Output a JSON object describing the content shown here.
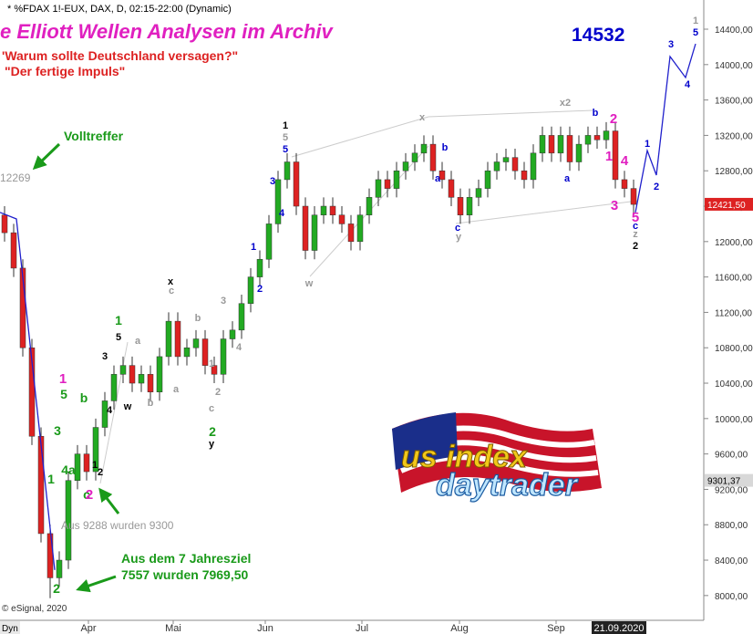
{
  "chart_data": {
    "type": "candlestick",
    "header": "* %FDAX 1!-EUX, DAX, D, 02:15-22:00 (Dynamic)",
    "title": "e Elliott Wellen Analysen im Archiv",
    "subtitle1": "'Warum sollte Deutschland versagen?\"",
    "subtitle2": "\"Der fertige Impuls\"",
    "target": "14532",
    "note_hit": "Volltreffer",
    "note_level": "12269",
    "note_9288": "Aus 9288 wurden 9300",
    "note_goal1": "Aus dem 7 Jahresziel",
    "note_goal2": "7557 wurden 7969,50",
    "copyright": "© eSignal, 2020",
    "corner": "Dyn",
    "logo": {
      "line1": "us index",
      "line2": "daytrader"
    },
    "up_color": "#22aa22",
    "down_color": "#dd2222",
    "xlim": [
      -0.5,
      76.7
    ],
    "xticks": [
      {
        "value": 9.2,
        "label": "Apr"
      },
      {
        "value": 18.5,
        "label": "Mai"
      },
      {
        "value": 28.6,
        "label": "Jun"
      },
      {
        "value": 39.2,
        "label": "Jul"
      },
      {
        "value": 49.9,
        "label": "Aug"
      },
      {
        "value": 60.5,
        "label": "Sep"
      }
    ],
    "date_box": {
      "value": 67.2,
      "label": "21.09.2020"
    },
    "ylim": [
      7720,
      14730
    ],
    "yticks": [
      {
        "value": 8000,
        "label": "8000,00"
      },
      {
        "value": 8400,
        "label": "8400,00"
      },
      {
        "value": 8800,
        "label": "8800,00"
      },
      {
        "value": 9200,
        "label": "9200,00"
      },
      {
        "value": 9600,
        "label": "9600,00"
      },
      {
        "value": 10000,
        "label": "10000,00"
      },
      {
        "value": 10400,
        "label": "10400,00"
      },
      {
        "value": 10800,
        "label": "10800,00"
      },
      {
        "value": 11200,
        "label": "11200,00"
      },
      {
        "value": 11600,
        "label": "11600,00"
      },
      {
        "value": 12000,
        "label": "12000,00"
      },
      {
        "value": 12400,
        "label": "12400,00"
      },
      {
        "value": 12800,
        "label": "12800,00"
      },
      {
        "value": 13200,
        "label": "13200,00"
      },
      {
        "value": 13600,
        "label": "13600,00"
      },
      {
        "value": 14000,
        "label": "14000,00"
      },
      {
        "value": 14400,
        "label": "14400,00"
      }
    ],
    "last_price": {
      "value": 12421.5,
      "label": "12421,50",
      "color": "#dd2222"
    },
    "marker_price": {
      "value": 9301.37,
      "label": "9301,37",
      "color": "#d8d8d8"
    },
    "open": [
      12300,
      12100,
      11700,
      10800,
      9800,
      8700,
      8200,
      8400,
      9300,
      9600,
      9400,
      9900,
      10200,
      10500,
      10600,
      10400,
      10500,
      10300,
      10700,
      11100,
      10700,
      10800,
      10900,
      10600,
      10500,
      10900,
      11000,
      11300,
      11600,
      11800,
      12200,
      12700,
      12900,
      12400,
      11900,
      12300,
      12400,
      12300,
      12200,
      12000,
      12300,
      12500,
      12700,
      12600,
      12800,
      12900,
      13000,
      13100,
      12800,
      12700,
      12500,
      12300,
      12500,
      12600,
      12800,
      12900,
      12950,
      12800,
      12700,
      13000,
      13200,
      13000,
      13200,
      12900,
      13100,
      13200,
      13150,
      13250,
      12700,
      12600
    ],
    "high": [
      12400,
      12200,
      11800,
      10900,
      9900,
      8800,
      8500,
      9400,
      9700,
      9700,
      10000,
      10300,
      10600,
      10700,
      10700,
      10600,
      10600,
      10800,
      11200,
      11200,
      10900,
      11000,
      11000,
      10700,
      11000,
      11100,
      11400,
      11700,
      11900,
      12300,
      12800,
      13000,
      13000,
      12500,
      12400,
      12500,
      12500,
      12400,
      12300,
      12400,
      12600,
      12800,
      12800,
      12900,
      13000,
      13100,
      13200,
      13200,
      12900,
      12800,
      12600,
      12600,
      12700,
      12900,
      13000,
      13050,
      13050,
      12900,
      13100,
      13300,
      13300,
      13300,
      13300,
      13200,
      13300,
      13300,
      13350,
      13350,
      12800,
      12700
    ],
    "low": [
      12000,
      11600,
      10700,
      9700,
      8600,
      7970,
      8100,
      8300,
      9200,
      9300,
      9300,
      9800,
      10100,
      10400,
      10300,
      10300,
      10200,
      10200,
      10600,
      10600,
      10600,
      10700,
      10500,
      10400,
      10400,
      10800,
      10900,
      11200,
      11500,
      11700,
      12100,
      12600,
      12300,
      11800,
      11800,
      12200,
      12200,
      12100,
      11900,
      11900,
      12200,
      12400,
      12500,
      12500,
      12700,
      12800,
      12900,
      12700,
      12600,
      12400,
      12200,
      12200,
      12400,
      12500,
      12700,
      12800,
      12700,
      12600,
      12600,
      12900,
      12900,
      12900,
      12800,
      12800,
      13000,
      13050,
      13050,
      12600,
      12500,
      12320
    ],
    "close": [
      12100,
      11700,
      10800,
      9800,
      8700,
      8200,
      8400,
      9300,
      9600,
      9400,
      9900,
      10200,
      10500,
      10600,
      10400,
      10500,
      10300,
      10700,
      11100,
      10700,
      10800,
      10900,
      10600,
      10500,
      10900,
      11000,
      11300,
      11600,
      11800,
      12200,
      12700,
      12900,
      12400,
      11900,
      12300,
      12400,
      12300,
      12200,
      12000,
      12300,
      12500,
      12700,
      12600,
      12800,
      12900,
      13000,
      13100,
      12800,
      12700,
      12500,
      12300,
      12500,
      12600,
      12800,
      12900,
      12950,
      12800,
      12700,
      13000,
      13200,
      13000,
      13200,
      12900,
      13100,
      13200,
      13150,
      13250,
      12700,
      12600,
      12420
    ],
    "lines": [
      {
        "color": "#2020cc",
        "x": [
          -0.5,
          1.3,
          5.5
        ],
        "values": [
          12330,
          12256,
          8289
        ]
      },
      {
        "color": "#2020cc",
        "x": [
          69.2,
          70.5,
          71.5,
          73,
          74.7,
          75.8
        ],
        "values": [
          12329,
          13029,
          12751,
          14091,
          13854,
          14235
        ]
      }
    ],
    "annotations": [
      {
        "text": "1",
        "color": "#1a9a1a"
      },
      {
        "text": "2",
        "color": "#1a9a1a"
      },
      {
        "text": "3",
        "color": "#1a9a1a"
      },
      {
        "text": "4a",
        "color": "#1a9a1a"
      },
      {
        "text": "b",
        "color": "#1a9a1a"
      },
      {
        "text": "c",
        "color": "#1a9a1a"
      },
      {
        "text": "5",
        "color": "#1a9a1a"
      },
      {
        "text": "1",
        "color": "#1a9a1a"
      },
      {
        "text": "2",
        "color": "#1a9a1a"
      },
      {
        "text": "1",
        "color": "#e020c0"
      },
      {
        "text": "2",
        "color": "#e020c0"
      },
      {
        "text": "2",
        "color": "#e020c0"
      },
      {
        "text": "1",
        "color": "#e020c0"
      },
      {
        "text": "4",
        "color": "#e020c0"
      },
      {
        "text": "3",
        "color": "#e020c0"
      },
      {
        "text": "5",
        "color": "#e020c0"
      },
      {
        "text": "1",
        "color": "#000000"
      },
      {
        "text": "2",
        "color": "#000000"
      },
      {
        "text": "3",
        "color": "#000000"
      },
      {
        "text": "4",
        "color": "#000000"
      },
      {
        "text": "5",
        "color": "#000000"
      },
      {
        "text": "w",
        "color": "#000000"
      },
      {
        "text": "x",
        "color": "#000000"
      },
      {
        "text": "y",
        "color": "#000000"
      },
      {
        "text": "1",
        "color": "#000000"
      },
      {
        "text": "2",
        "color": "#000000"
      },
      {
        "text": "a",
        "color": "#999999"
      },
      {
        "text": "b",
        "color": "#999999"
      },
      {
        "text": "c",
        "color": "#999999"
      },
      {
        "text": "b",
        "color": "#999999"
      },
      {
        "text": "a",
        "color": "#999999"
      },
      {
        "text": "1",
        "color": "#999999"
      },
      {
        "text": "2",
        "color": "#999999"
      },
      {
        "text": "3",
        "color": "#999999"
      },
      {
        "text": "4",
        "color": "#999999"
      },
      {
        "text": "c",
        "color": "#999999"
      },
      {
        "text": "5",
        "color": "#999999"
      },
      {
        "text": "x",
        "color": "#999999"
      },
      {
        "text": "w",
        "color": "#999999"
      },
      {
        "text": "y",
        "color": "#999999"
      },
      {
        "text": "x2",
        "color": "#999999"
      },
      {
        "text": "z",
        "color": "#999999"
      },
      {
        "text": "1",
        "color": "#999999"
      },
      {
        "text": "3",
        "color": "#0000cc"
      },
      {
        "text": "4",
        "color": "#0000cc"
      },
      {
        "text": "1",
        "color": "#0000cc"
      },
      {
        "text": "2",
        "color": "#0000cc"
      },
      {
        "text": "5",
        "color": "#0000cc"
      },
      {
        "text": "b",
        "color": "#0000cc"
      },
      {
        "text": "a",
        "color": "#0000cc"
      },
      {
        "text": "c",
        "color": "#0000cc"
      },
      {
        "text": "b",
        "color": "#0000cc"
      },
      {
        "text": "a",
        "color": "#0000cc"
      },
      {
        "text": "c",
        "color": "#0000cc"
      },
      {
        "text": "1",
        "color": "#0000cc"
      },
      {
        "text": "2",
        "color": "#0000cc"
      },
      {
        "text": "3",
        "color": "#0000cc"
      },
      {
        "text": "4",
        "color": "#0000cc"
      },
      {
        "text": "5",
        "color": "#0000cc"
      }
    ]
  }
}
